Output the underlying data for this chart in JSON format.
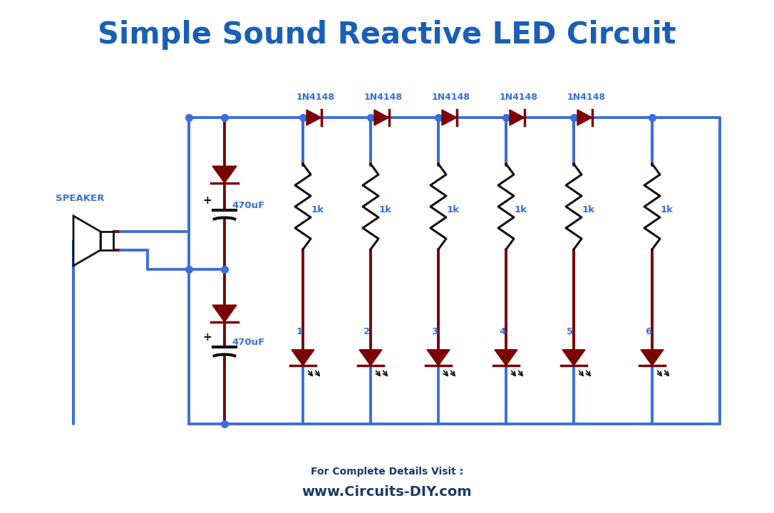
{
  "title": "Simple Sound Reactive LED Circuit",
  "title_color": "#1a5fb4",
  "title_fontsize": 30,
  "bg_color": "#ffffff",
  "wire_color": "#3a6fd8",
  "component_color": "#7b0000",
  "resistor_color": "#111111",
  "text_color": "#3a6fd8",
  "footer_text1": "For Complete Details Visit :",
  "footer_text2": "www.Circuits-DIY.com",
  "footer_color": "#1a3a6b",
  "diode_labels": [
    "1N4148",
    "1N4148",
    "1N4148",
    "1N4148",
    "1N4148"
  ],
  "resistor_labels": [
    "1k",
    "1k",
    "1k",
    "1k",
    "1k",
    "1k"
  ],
  "cap_labels": [
    "470uF",
    "470uF"
  ]
}
